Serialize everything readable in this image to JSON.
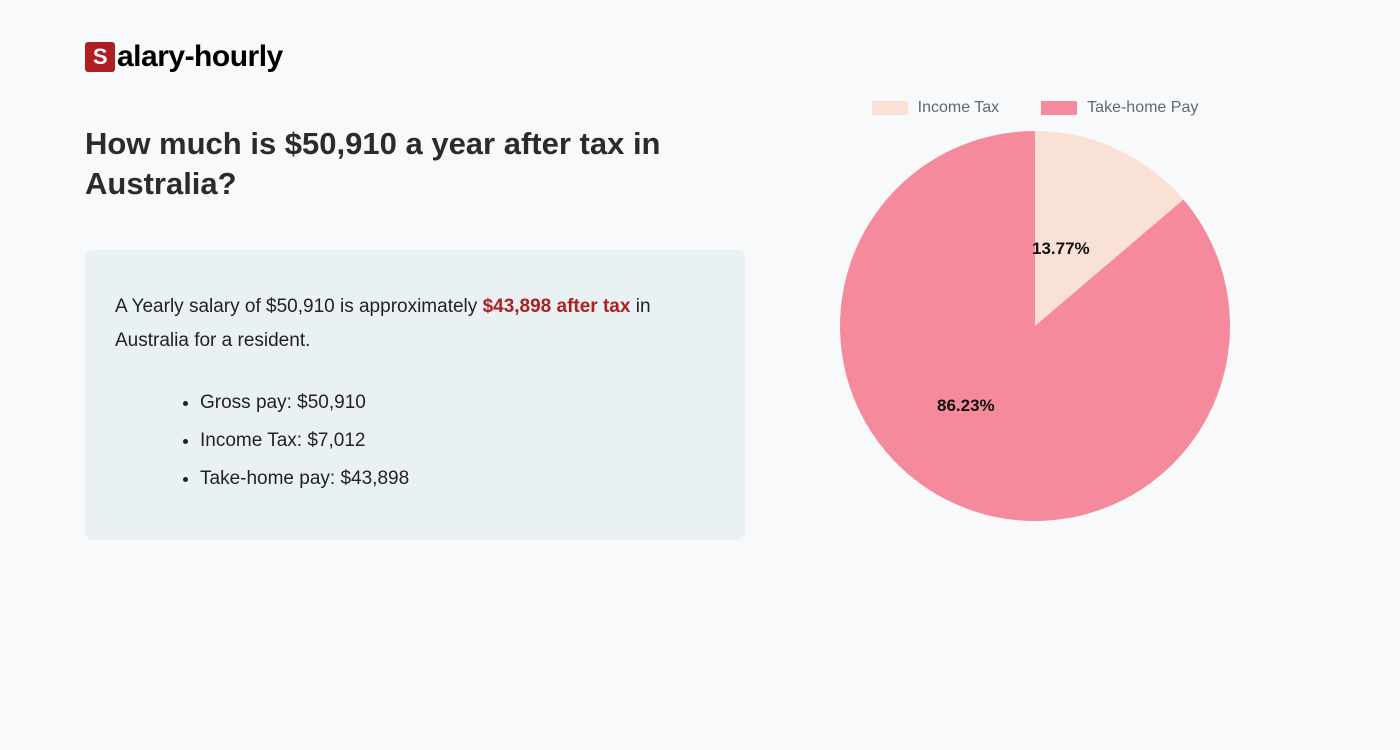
{
  "logo": {
    "icon_letter": "S",
    "text": "alary-hourly"
  },
  "title": "How much is $50,910 a year after tax in Australia?",
  "summary": {
    "pre": "A Yearly salary of $50,910 is approximately ",
    "highlight": "$43,898 after tax",
    "post": " in Australia for a resident."
  },
  "bullets": [
    "Gross pay: $50,910",
    "Income Tax: $7,012",
    "Take-home pay: $43,898"
  ],
  "chart": {
    "type": "pie",
    "radius": 195,
    "slices": [
      {
        "name": "Income Tax",
        "value": 13.77,
        "color": "#fae1d6",
        "label": "13.77%"
      },
      {
        "name": "Take-home Pay",
        "value": 86.23,
        "color": "#f58a9c",
        "label": "86.23%"
      }
    ],
    "legend_text_color": "#606a6e",
    "label_fontsize": 17,
    "background_color": "#f7f9fa"
  }
}
